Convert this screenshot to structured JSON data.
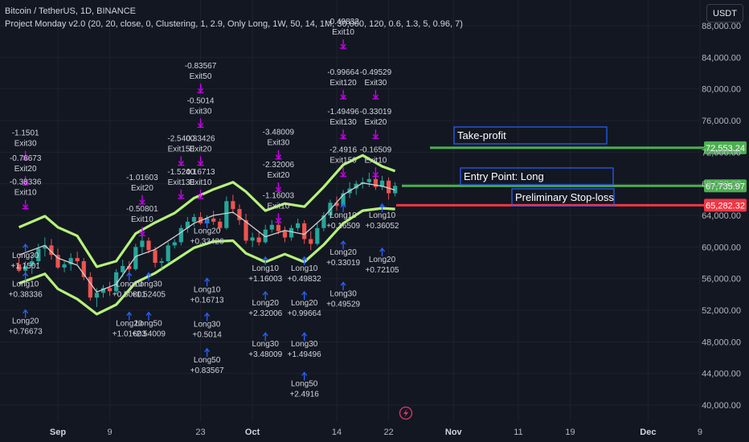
{
  "header": {
    "symbol": "Bitcoin / TetherUS, 1D, BINANCE",
    "indicator": "Project Monday v2.0 (20, 20, close, 0, Clustering, 1, 2.9, Only Long, 1W, 50, 14, 1M, 30,000, 120, 0.6, 1.3, 5, 0.96, 7)",
    "currency": "USDT"
  },
  "colors": {
    "background": "#131722",
    "bull": "#26a69a",
    "bear": "#ef5350",
    "band": "#b6f27a",
    "basis": "#d0d0d0",
    "exit_arrow": "#d500f9",
    "long_arrow": "#2962ff",
    "take_profit": "#4caf50",
    "stop_loss": "#f23645",
    "box_border": "#2962ff"
  },
  "chart_data": {
    "type": "candlestick",
    "y_axis": {
      "min": 40000,
      "max": 88000,
      "ticks": [
        "40,000.00",
        "44,000.00",
        "48,000.00",
        "52,000.00",
        "56,000.00",
        "60,000.00",
        "64,000.00",
        "68,000.00",
        "72,000.00",
        "76,000.00",
        "80,000.00",
        "84,000.00",
        "88,000.00"
      ]
    },
    "x_axis": {
      "ticks": [
        {
          "label": "Sep",
          "day": 0,
          "bold": true
        },
        {
          "label": "9",
          "day": 8
        },
        {
          "label": "23",
          "day": 22
        },
        {
          "label": "Oct",
          "day": 30,
          "bold": true
        },
        {
          "label": "14",
          "day": 43
        },
        {
          "label": "22",
          "day": 51
        },
        {
          "label": "Nov",
          "day": 61,
          "bold": true
        },
        {
          "label": "11",
          "day": 71
        },
        {
          "label": "19",
          "day": 79
        },
        {
          "label": "Dec",
          "day": 91,
          "bold": true
        },
        {
          "label": "9",
          "day": 99
        }
      ]
    },
    "candles": [
      [
        -6,
        57800,
        58600,
        56800,
        57000
      ],
      [
        -5,
        57000,
        58200,
        56400,
        57600
      ],
      [
        -4,
        57600,
        59000,
        56600,
        58200
      ],
      [
        -3,
        58200,
        60400,
        57800,
        59800
      ],
      [
        -2,
        59800,
        61200,
        58800,
        60200
      ],
      [
        -1,
        60200,
        61000,
        58400,
        59000
      ],
      [
        0,
        59000,
        59800,
        57200,
        57400
      ],
      [
        1,
        57400,
        58200,
        56800,
        57800
      ],
      [
        2,
        57800,
        59200,
        57000,
        58600
      ],
      [
        3,
        58600,
        59400,
        57800,
        58200
      ],
      [
        4,
        58200,
        58600,
        55800,
        56200
      ],
      [
        5,
        56200,
        56800,
        53200,
        53600
      ],
      [
        6,
        53600,
        54800,
        52400,
        54200
      ],
      [
        7,
        54200,
        55200,
        53600,
        54800
      ],
      [
        8,
        54800,
        55600,
        53800,
        54400
      ],
      [
        9,
        54400,
        57200,
        54000,
        56800
      ],
      [
        10,
        56800,
        58400,
        56200,
        57600
      ],
      [
        11,
        57600,
        58200,
        56800,
        57200
      ],
      [
        12,
        57200,
        60400,
        57000,
        60000
      ],
      [
        13,
        60000,
        61400,
        59200,
        60800
      ],
      [
        14,
        60800,
        61200,
        59200,
        59600
      ],
      [
        15,
        59600,
        60000,
        57400,
        58000
      ],
      [
        16,
        58000,
        58600,
        57200,
        58200
      ],
      [
        17,
        58200,
        60600,
        58000,
        60200
      ],
      [
        18,
        60200,
        61000,
        59800,
        60600
      ],
      [
        19,
        60600,
        62800,
        60200,
        62400
      ],
      [
        20,
        62400,
        63800,
        61800,
        63200
      ],
      [
        21,
        63200,
        64200,
        62600,
        63800
      ],
      [
        22,
        63800,
        64400,
        62800,
        63000
      ],
      [
        23,
        63000,
        64000,
        62400,
        63600
      ],
      [
        24,
        63600,
        64600,
        62800,
        63200
      ],
      [
        25,
        63200,
        63600,
        62000,
        62400
      ],
      [
        26,
        62400,
        66400,
        62200,
        65800
      ],
      [
        27,
        65800,
        66600,
        64200,
        64800
      ],
      [
        28,
        64800,
        65400,
        62800,
        63400
      ],
      [
        29,
        63400,
        64200,
        60400,
        60800
      ],
      [
        30,
        60800,
        61800,
        60000,
        61200
      ],
      [
        31,
        61200,
        62000,
        60200,
        60600
      ],
      [
        32,
        60600,
        62800,
        60400,
        62200
      ],
      [
        33,
        62200,
        63400,
        61800,
        62800
      ],
      [
        34,
        62800,
        63200,
        61600,
        62000
      ],
      [
        35,
        62000,
        62600,
        60600,
        61200
      ],
      [
        36,
        61200,
        62800,
        60800,
        62400
      ],
      [
        37,
        62400,
        63600,
        62000,
        63000
      ],
      [
        38,
        63000,
        63400,
        60400,
        61000
      ],
      [
        39,
        61000,
        62000,
        59600,
        60400
      ],
      [
        40,
        60400,
        63000,
        60200,
        62400
      ],
      [
        41,
        62400,
        64400,
        62000,
        64000
      ],
      [
        42,
        64000,
        66000,
        63600,
        65600
      ],
      [
        43,
        65600,
        66400,
        64600,
        65200
      ],
      [
        44,
        65200,
        67200,
        64800,
        66800
      ],
      [
        45,
        66800,
        68200,
        66200,
        67400
      ],
      [
        46,
        67400,
        68400,
        66600,
        68000
      ],
      [
        47,
        68000,
        68800,
        67400,
        68200
      ],
      [
        48,
        68200,
        69400,
        67600,
        68600
      ],
      [
        49,
        68600,
        69200,
        67200,
        67600
      ],
      [
        50,
        67600,
        69000,
        67200,
        68400
      ],
      [
        51,
        68400,
        68800,
        66000,
        66800
      ],
      [
        52,
        66800,
        68200,
        66400,
        67735.97
      ]
    ],
    "bands": {
      "upper": [
        [
          -6,
          62500
        ],
        [
          -2,
          63900
        ],
        [
          0,
          62500
        ],
        [
          3,
          61400
        ],
        [
          6,
          57500
        ],
        [
          9,
          58200
        ],
        [
          12,
          61700
        ],
        [
          15,
          63100
        ],
        [
          18,
          64300
        ],
        [
          21,
          66200
        ],
        [
          24,
          67300
        ],
        [
          27,
          68200
        ],
        [
          29,
          67000
        ],
        [
          32,
          64600
        ],
        [
          35,
          65500
        ],
        [
          38,
          65100
        ],
        [
          41,
          67600
        ],
        [
          44,
          70400
        ],
        [
          47,
          71600
        ],
        [
          50,
          70200
        ],
        [
          52,
          69600
        ]
      ],
      "basis": [
        [
          -6,
          59000
        ],
        [
          -2,
          60200
        ],
        [
          0,
          58600
        ],
        [
          3,
          57700
        ],
        [
          6,
          54300
        ],
        [
          9,
          55300
        ],
        [
          12,
          58800
        ],
        [
          15,
          59700
        ],
        [
          18,
          61300
        ],
        [
          21,
          63000
        ],
        [
          24,
          64000
        ],
        [
          27,
          64400
        ],
        [
          29,
          63200
        ],
        [
          32,
          61300
        ],
        [
          35,
          62100
        ],
        [
          38,
          61600
        ],
        [
          41,
          63800
        ],
        [
          44,
          66600
        ],
        [
          47,
          68100
        ],
        [
          50,
          67700
        ],
        [
          52,
          67200
        ]
      ],
      "lower": [
        [
          -6,
          55400
        ],
        [
          -2,
          56600
        ],
        [
          0,
          54700
        ],
        [
          3,
          53400
        ],
        [
          6,
          51500
        ],
        [
          9,
          52700
        ],
        [
          12,
          55500
        ],
        [
          15,
          56700
        ],
        [
          18,
          58300
        ],
        [
          21,
          59900
        ],
        [
          24,
          60700
        ],
        [
          27,
          60800
        ],
        [
          29,
          59200
        ],
        [
          32,
          58100
        ],
        [
          35,
          59100
        ],
        [
          38,
          58100
        ],
        [
          41,
          60300
        ],
        [
          44,
          63000
        ],
        [
          47,
          64600
        ],
        [
          50,
          64900
        ],
        [
          52,
          64800
        ]
      ]
    },
    "exit_signals": [
      {
        "day": -5,
        "top": "-1.1501",
        "bottom": "Exit30",
        "price": 74100
      },
      {
        "day": -5,
        "top": "-0.76673",
        "bottom": "Exit20",
        "price": 70900
      },
      {
        "day": -5,
        "top": "-0.38336",
        "bottom": "Exit10",
        "price": 67900
      },
      {
        "day": 13,
        "top": "-1.01603",
        "bottom": "Exit20",
        "price": 68500
      },
      {
        "day": 13,
        "top": "-0.50801",
        "bottom": "Exit10",
        "price": 64500
      },
      {
        "day": 19,
        "top": "-2.5400",
        "bottom": "Exit150",
        "price": 73400
      },
      {
        "day": 19,
        "top": "-1.5240",
        "bottom": "Exit130",
        "price": 69200
      },
      {
        "day": 22,
        "top": "0.33426",
        "bottom": "Exit20",
        "price": 73400
      },
      {
        "day": 22,
        "top": "0.16713",
        "bottom": "Exit10",
        "price": 69200
      },
      {
        "day": 22,
        "top": "-0.83567",
        "bottom": "Exit50",
        "price": 82600
      },
      {
        "day": 22,
        "top": "-0.5014",
        "bottom": "Exit30",
        "price": 78200
      },
      {
        "day": 34,
        "top": "-3.48009",
        "bottom": "Exit30",
        "price": 74200
      },
      {
        "day": 34,
        "top": "-2.32006",
        "bottom": "Exit20",
        "price": 70100
      },
      {
        "day": 34,
        "top": "-1.16003",
        "bottom": "Exit10",
        "price": 66200
      },
      {
        "day": 44,
        "top": "-0.49832",
        "bottom": "Exit10",
        "price": 88200
      },
      {
        "day": 44,
        "top": "-0.99664",
        "bottom": "Exit120",
        "price": 81800
      },
      {
        "day": 44,
        "top": "-1.49496",
        "bottom": "Exit130",
        "price": 76800
      },
      {
        "day": 44,
        "top": "-2.4916",
        "bottom": "Exit150",
        "price": 72000
      },
      {
        "day": 49,
        "top": "-0.49529",
        "bottom": "Exit30",
        "price": 81800
      },
      {
        "day": 49,
        "top": "-0.33019",
        "bottom": "Exit20",
        "price": 76800
      },
      {
        "day": 49,
        "top": "-0.16509",
        "bottom": "Exit10",
        "price": 72000
      }
    ],
    "long_signals": [
      {
        "day": -5,
        "top": "Long30",
        "bottom": "+1.1501",
        "price": 58600
      },
      {
        "day": -5,
        "top": "Long10",
        "bottom": "+0.38336",
        "price": 55000
      },
      {
        "day": -5,
        "top": "Long20",
        "bottom": "+0.76673",
        "price": 50300
      },
      {
        "day": 11,
        "top": "Long10",
        "bottom": "+0.50801",
        "price": 55000
      },
      {
        "day": 14,
        "top": "Long30",
        "bottom": "+1.52405",
        "price": 55000
      },
      {
        "day": 11,
        "top": "Long20",
        "bottom": "+1.01603",
        "price": 50000
      },
      {
        "day": 14,
        "top": "Long50",
        "bottom": "+2.54009",
        "price": 50000
      },
      {
        "day": 23,
        "top": "Long20",
        "bottom": "+0.33426",
        "price": 61700
      },
      {
        "day": 23,
        "top": "Long10",
        "bottom": "+0.16713",
        "price": 54300
      },
      {
        "day": 23,
        "top": "Long30",
        "bottom": "+0.5014",
        "price": 49900
      },
      {
        "day": 23,
        "top": "Long50",
        "bottom": "+0.83567",
        "price": 45400
      },
      {
        "day": 32,
        "top": "Long10",
        "bottom": "+1.16003",
        "price": 57000
      },
      {
        "day": 32,
        "top": "Long20",
        "bottom": "+2.32006",
        "price": 52600
      },
      {
        "day": 32,
        "top": "Long30",
        "bottom": "+3.48009",
        "price": 47400
      },
      {
        "day": 38,
        "top": "Long10",
        "bottom": "+0.49832",
        "price": 57000
      },
      {
        "day": 38,
        "top": "Long20",
        "bottom": "+0.99664",
        "price": 52600
      },
      {
        "day": 38,
        "top": "Long30",
        "bottom": "+1.49496",
        "price": 47400
      },
      {
        "day": 38,
        "top": "Long50",
        "bottom": "+2.4916",
        "price": 42400
      },
      {
        "day": 44,
        "top": "Long10",
        "bottom": "+0.16509",
        "price": 63700
      },
      {
        "day": 44,
        "top": "Long20",
        "bottom": "+0.33019",
        "price": 59000
      },
      {
        "day": 44,
        "top": "Long30",
        "bottom": "+0.49529",
        "price": 53800
      },
      {
        "day": 50,
        "top": "Long10",
        "bottom": "+0.36052",
        "price": 63700
      },
      {
        "day": 50,
        "top": "Long20",
        "bottom": "+0.72105",
        "price": 58100
      }
    ],
    "levels": [
      {
        "name": "take-profit",
        "label": "Take-profit",
        "price": 72553.24,
        "price_label": "72,553.24"
      },
      {
        "name": "entry",
        "label": "Entry Point: Long",
        "price": 67735.97,
        "price_label": "67,735.97"
      },
      {
        "name": "stop-loss",
        "label": "Preliminary Stop-loss",
        "price": 65282.32,
        "price_label": "65,282.32"
      }
    ]
  }
}
